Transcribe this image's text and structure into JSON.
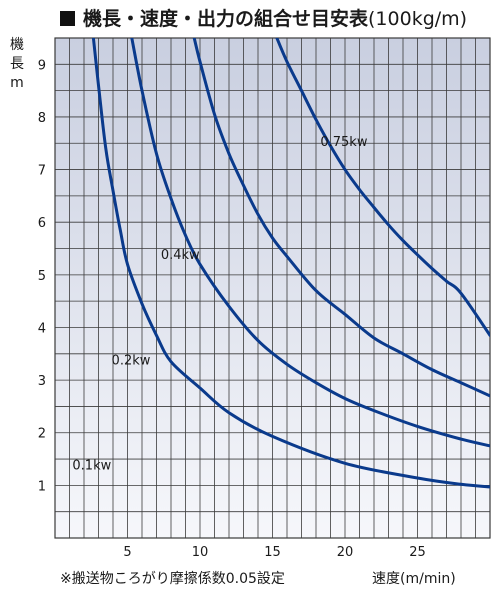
{
  "title": {
    "main": "機長・速度・出力の組合せ目安表",
    "unit": "(100kg/m)"
  },
  "note": "※搬送物ころがり摩擦係数0.05設定",
  "colors": {
    "curve": "#0a3a8c",
    "grid": "#3a3a3a",
    "plot_top": "#c9cfe0",
    "plot_bottom": "#f6f7fb"
  },
  "chart_data": {
    "type": "line",
    "title": "機長・速度・出力の組合せ目安表(100kg/m)",
    "xlabel": "速度(m/min)",
    "ylabel": "機長m",
    "ylabel_lines": [
      "機",
      "長",
      "m"
    ],
    "xlim": [
      0,
      30
    ],
    "ylim": [
      0,
      9.5
    ],
    "xticks": [
      5,
      10,
      15,
      20,
      25
    ],
    "yticks": [
      1,
      2,
      3,
      4,
      5,
      6,
      7,
      8,
      9
    ],
    "grid": true,
    "series": [
      {
        "name": "0.1kw",
        "x": [
          2.65,
          3,
          3.5,
          4,
          4.5,
          5,
          6,
          7,
          8,
          10,
          12,
          15,
          20,
          25,
          28,
          30
        ],
        "y": [
          9.5,
          8.6,
          7.4,
          6.6,
          5.85,
          5.2,
          4.45,
          3.85,
          3.35,
          2.85,
          2.38,
          1.93,
          1.42,
          1.14,
          1.02,
          0.97
        ]
      },
      {
        "name": "0.2kw",
        "x": [
          5.3,
          6,
          7,
          8,
          9,
          10,
          12,
          14,
          16,
          18,
          20,
          22,
          25,
          28,
          30
        ],
        "y": [
          9.5,
          8.5,
          7.3,
          6.45,
          5.75,
          5.2,
          4.4,
          3.75,
          3.3,
          2.95,
          2.65,
          2.42,
          2.12,
          1.88,
          1.75
        ]
      },
      {
        "name": "0.4kw",
        "x": [
          9.6,
          10,
          11,
          12,
          13,
          14,
          15,
          16,
          18,
          20,
          22,
          24,
          26,
          28,
          30
        ],
        "y": [
          9.5,
          9.05,
          8.05,
          7.3,
          6.7,
          6.15,
          5.7,
          5.35,
          4.7,
          4.25,
          3.8,
          3.5,
          3.2,
          2.95,
          2.7
        ]
      },
      {
        "name": "0.75kw",
        "x": [
          15.3,
          16,
          17,
          18,
          19,
          20,
          21,
          22,
          23,
          24,
          25,
          26,
          27,
          28,
          30
        ],
        "y": [
          9.5,
          9.05,
          8.5,
          7.95,
          7.45,
          7.0,
          6.62,
          6.28,
          5.95,
          5.65,
          5.38,
          5.12,
          4.88,
          4.65,
          3.85
        ]
      }
    ],
    "curve_labels": [
      {
        "text": "0.1kw",
        "x": 1.2,
        "y": 1.3
      },
      {
        "text": "0.2kw",
        "x": 3.9,
        "y": 3.3
      },
      {
        "text": "0.4kw",
        "x": 7.3,
        "y": 5.3
      },
      {
        "text": "0.75kw",
        "x": 18.3,
        "y": 7.45
      }
    ]
  }
}
